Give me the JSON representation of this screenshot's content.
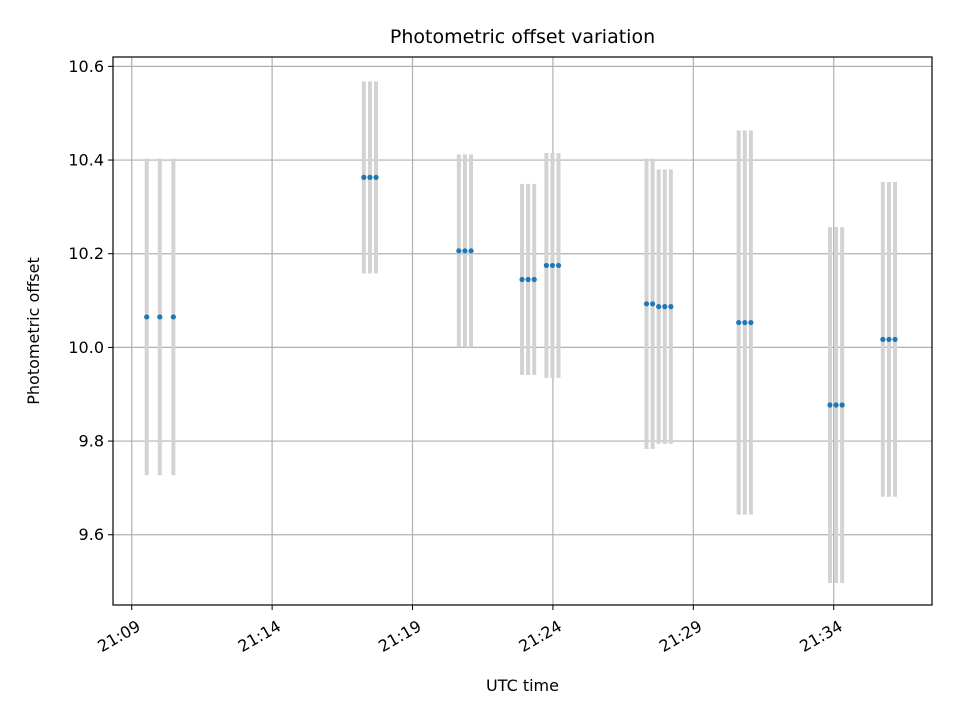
{
  "chart_data": {
    "type": "scatter",
    "title": "Photometric offset variation",
    "xlabel": "UTC time",
    "ylabel": "Photometric offset",
    "xlim": [
      "21:08:20",
      "21:37:30"
    ],
    "ylim": [
      9.45,
      10.62
    ],
    "xticks": [
      "21:09",
      "21:14",
      "21:19",
      "21:24",
      "21:29",
      "21:34"
    ],
    "yticks": [
      9.6,
      9.8,
      10.0,
      10.2,
      10.4,
      10.6
    ],
    "ytick_labels": [
      "9.6",
      "9.8",
      "10.0",
      "10.2",
      "10.4",
      "10.6"
    ],
    "grid": true,
    "colors": {
      "point": "#1f77b4",
      "errorbar": "#d3d3d3"
    },
    "series": [
      {
        "x": [
          "21:09:32",
          "21:10:00",
          "21:10:29",
          "21:17:16",
          "21:17:29",
          "21:17:42",
          "21:20:39",
          "21:20:52",
          "21:21:05",
          "21:22:54",
          "21:23:07",
          "21:23:20",
          "21:23:46",
          "21:23:59",
          "21:24:12",
          "21:27:20",
          "21:27:33",
          "21:27:46",
          "21:27:59",
          "21:28:12",
          "21:30:37",
          "21:30:50",
          "21:31:03",
          "21:33:52",
          "21:34:05",
          "21:34:18",
          "21:35:45",
          "21:35:58",
          "21:36:11"
        ],
        "y": [
          10.065,
          10.065,
          10.065,
          10.363,
          10.363,
          10.363,
          10.206,
          10.206,
          10.206,
          10.145,
          10.145,
          10.145,
          10.175,
          10.175,
          10.175,
          10.093,
          10.093,
          10.087,
          10.087,
          10.087,
          10.053,
          10.053,
          10.053,
          9.877,
          9.877,
          9.877,
          10.017,
          10.017,
          10.017
        ],
        "yerr": [
          0.338,
          0.338,
          0.338,
          0.205,
          0.205,
          0.205,
          0.206,
          0.206,
          0.206,
          0.204,
          0.204,
          0.204,
          0.24,
          0.24,
          0.24,
          0.31,
          0.31,
          0.293,
          0.293,
          0.293,
          0.41,
          0.41,
          0.41,
          0.38,
          0.38,
          0.38,
          0.336,
          0.336,
          0.336
        ]
      }
    ]
  }
}
